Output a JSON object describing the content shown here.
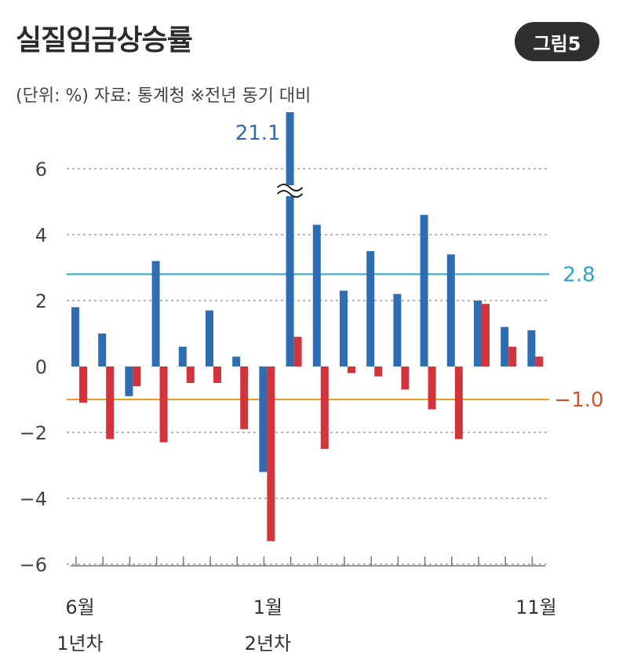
{
  "header": {
    "title": "실질임금상승률",
    "badge": "그림5",
    "subtitle": "(단위: %) 자료: 통계청 ※전년 동기 대비"
  },
  "chart_data": {
    "type": "bar",
    "title": "실질임금상승률",
    "ylim": [
      -6,
      7.5
    ],
    "yticks": [
      6,
      4,
      2,
      0,
      -2,
      -4,
      -6
    ],
    "ytick_labels": [
      "6",
      "4",
      "2",
      "0",
      "−2",
      "−4",
      "−6"
    ],
    "x_labels": [
      {
        "index": 0,
        "lines": [
          "6월",
          "1년차"
        ]
      },
      {
        "index": 7,
        "lines": [
          "1월",
          "2년차"
        ]
      },
      {
        "index": 17,
        "lines": [
          "11월"
        ]
      }
    ],
    "series": [
      {
        "color": "#2f6db3",
        "values": [
          1.8,
          1.0,
          -0.9,
          3.2,
          0.6,
          1.7,
          0.3,
          -3.2,
          21.1,
          4.3,
          2.3,
          3.5,
          2.2,
          4.6,
          3.4,
          2.0,
          1.2,
          1.1
        ]
      },
      {
        "color": "#d3333b",
        "values": [
          -1.1,
          -2.2,
          -0.6,
          -2.3,
          -0.5,
          -0.5,
          -1.9,
          -5.3,
          0.9,
          -2.5,
          -0.2,
          -0.3,
          -0.7,
          -1.3,
          -2.2,
          1.9,
          0.6,
          0.3
        ]
      }
    ],
    "break": {
      "series": 0,
      "index": 8,
      "label": "21.1"
    },
    "reference_lines": [
      {
        "value": 2.8,
        "label": "2.8",
        "color": "#2aa6c9"
      },
      {
        "value": -1.0,
        "label": "−1.0",
        "color": "#f09a1f",
        "label_color": "#d2552a"
      }
    ],
    "grid": true
  }
}
